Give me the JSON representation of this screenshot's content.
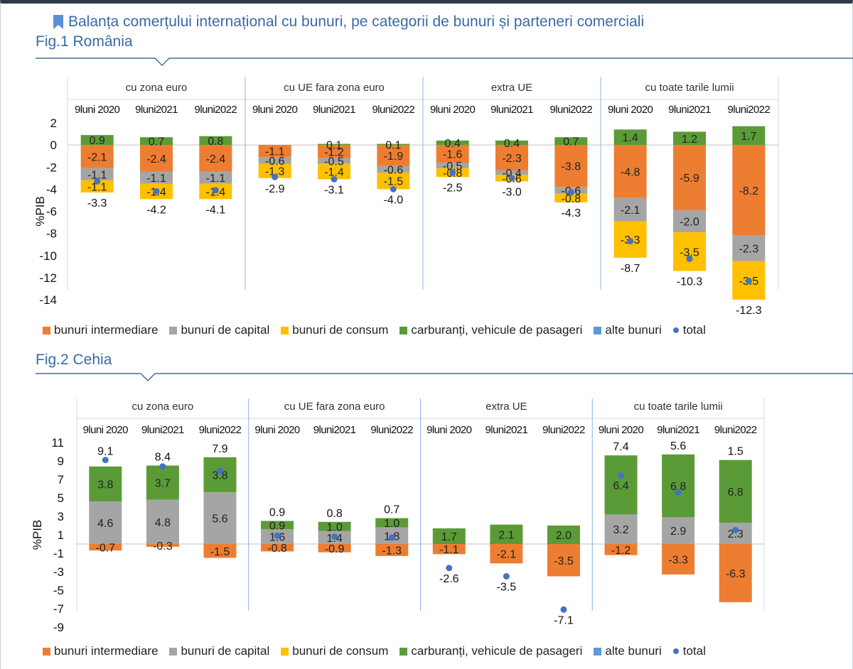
{
  "title": "Balanța comerțului internațional cu bunuri, pe categorii de bunuri și parteneri comerciali",
  "colors": {
    "bunuri_intermediare": "#ed7d31",
    "bunuri_de_capital": "#a5a5a5",
    "bunuri_de_consum": "#ffc000",
    "carburanti": "#5b9b37",
    "alte_bunuri": "#5b9bd5",
    "total": "#4472c4",
    "title": "#3a6aa5"
  },
  "legend": [
    {
      "key": "bunuri_intermediare",
      "label": "bunuri intermediare",
      "shape": "square"
    },
    {
      "key": "bunuri_de_capital",
      "label": "bunuri de capital",
      "shape": "square"
    },
    {
      "key": "bunuri_de_consum",
      "label": "bunuri de consum",
      "shape": "square"
    },
    {
      "key": "carburanti",
      "label": "carburanți, vehicule de pasageri",
      "shape": "square"
    },
    {
      "key": "alte_bunuri",
      "label": "alte bunuri",
      "shape": "square"
    },
    {
      "key": "total",
      "label": "total",
      "shape": "dot"
    }
  ],
  "chart_data": [
    {
      "type": "bar",
      "stacked": true,
      "figure_label": "Fig.1 România",
      "ylabel": "%PIB",
      "ylim": [
        -14,
        2
      ],
      "yticks": [
        2,
        0,
        -2,
        -4,
        -6,
        -8,
        -10,
        -12,
        -14
      ],
      "groups": [
        "cu zona euro",
        "cu UE fara zona euro",
        "extra UE",
        "cu toate tarile lumii"
      ],
      "periods": [
        "9luni 2020",
        "9luni2021",
        "9luni2022"
      ],
      "series": [
        {
          "key": "carburanti",
          "name": "carburanți, vehicule de pasageri",
          "values": [
            0.9,
            0.7,
            0.8,
            0,
            0.1,
            0.1,
            0.4,
            0.4,
            0.7,
            1.4,
            1.2,
            1.7
          ]
        },
        {
          "key": "bunuri_intermediare",
          "name": "bunuri intermediare",
          "values": [
            -2.1,
            -2.4,
            -2.4,
            -1.1,
            -1.2,
            -1.9,
            -1.6,
            -2.3,
            -3.8,
            -4.8,
            -5.9,
            -8.2
          ]
        },
        {
          "key": "bunuri_de_capital",
          "name": "bunuri de capital",
          "values": [
            -1.1,
            -1.1,
            -1.1,
            -0.6,
            -0.5,
            -0.6,
            -0.5,
            -0.4,
            -0.6,
            -2.1,
            -2.0,
            -2.3
          ]
        },
        {
          "key": "bunuri_de_consum",
          "name": "bunuri de consum",
          "values": [
            -1.1,
            -1.4,
            -1.4,
            -1.3,
            -1.4,
            -1.5,
            -0.8,
            -0.6,
            -0.8,
            -3.3,
            -3.5,
            -3.5
          ]
        },
        {
          "key": "alte_bunuri",
          "name": "alte bunuri",
          "values": [
            0,
            0,
            0,
            0,
            0,
            0,
            0,
            0,
            0,
            0,
            0,
            0
          ]
        }
      ],
      "total": [
        -3.3,
        -4.2,
        -4.1,
        -2.9,
        -3.1,
        -4.0,
        -2.5,
        -3.0,
        -4.3,
        -8.7,
        -10.3,
        -12.3
      ]
    },
    {
      "type": "bar",
      "stacked": true,
      "figure_label": "Fig.2 Cehia",
      "ylabel": "%PIB",
      "ylim": [
        -9,
        11
      ],
      "yticks": [
        11,
        9,
        7,
        5,
        3,
        1,
        -1,
        -3,
        -5,
        -7,
        -9
      ],
      "groups": [
        "cu zona euro",
        "cu UE fara zona euro",
        "extra UE",
        "cu toate tarile lumii"
      ],
      "periods": [
        "9luni 2020",
        "9luni2021",
        "9luni2022"
      ],
      "series": [
        {
          "key": "bunuri_de_capital",
          "name": "bunuri de capital",
          "values": [
            4.6,
            4.8,
            5.6,
            1.6,
            1.4,
            1.8,
            0,
            0,
            0,
            3.2,
            2.9,
            2.3
          ]
        },
        {
          "key": "carburanti",
          "name": "carburanți, vehicule de pasageri",
          "values": [
            3.8,
            3.7,
            3.8,
            0.9,
            1.0,
            1.0,
            1.7,
            2.1,
            2.0,
            6.4,
            6.8,
            6.8
          ]
        },
        {
          "key": "bunuri_intermediare",
          "name": "bunuri intermediare",
          "values": [
            -0.7,
            -0.3,
            -1.5,
            -0.8,
            -0.9,
            -1.3,
            -1.1,
            -2.1,
            -3.5,
            -1.2,
            -3.3,
            -6.3
          ]
        },
        {
          "key": "bunuri_de_consum",
          "name": "bunuri de consum",
          "values": [
            0,
            0,
            0,
            0,
            0,
            0,
            0,
            0,
            0,
            0,
            0,
            0
          ]
        },
        {
          "key": "alte_bunuri",
          "name": "alte bunuri",
          "values": [
            0,
            0,
            0,
            0,
            0,
            0,
            0,
            0,
            0,
            0,
            0,
            0
          ]
        }
      ],
      "total": [
        9.1,
        8.4,
        7.9,
        0.9,
        0.8,
        0.7,
        -2.6,
        -3.5,
        -7.1,
        7.4,
        5.6,
        1.5
      ]
    }
  ]
}
